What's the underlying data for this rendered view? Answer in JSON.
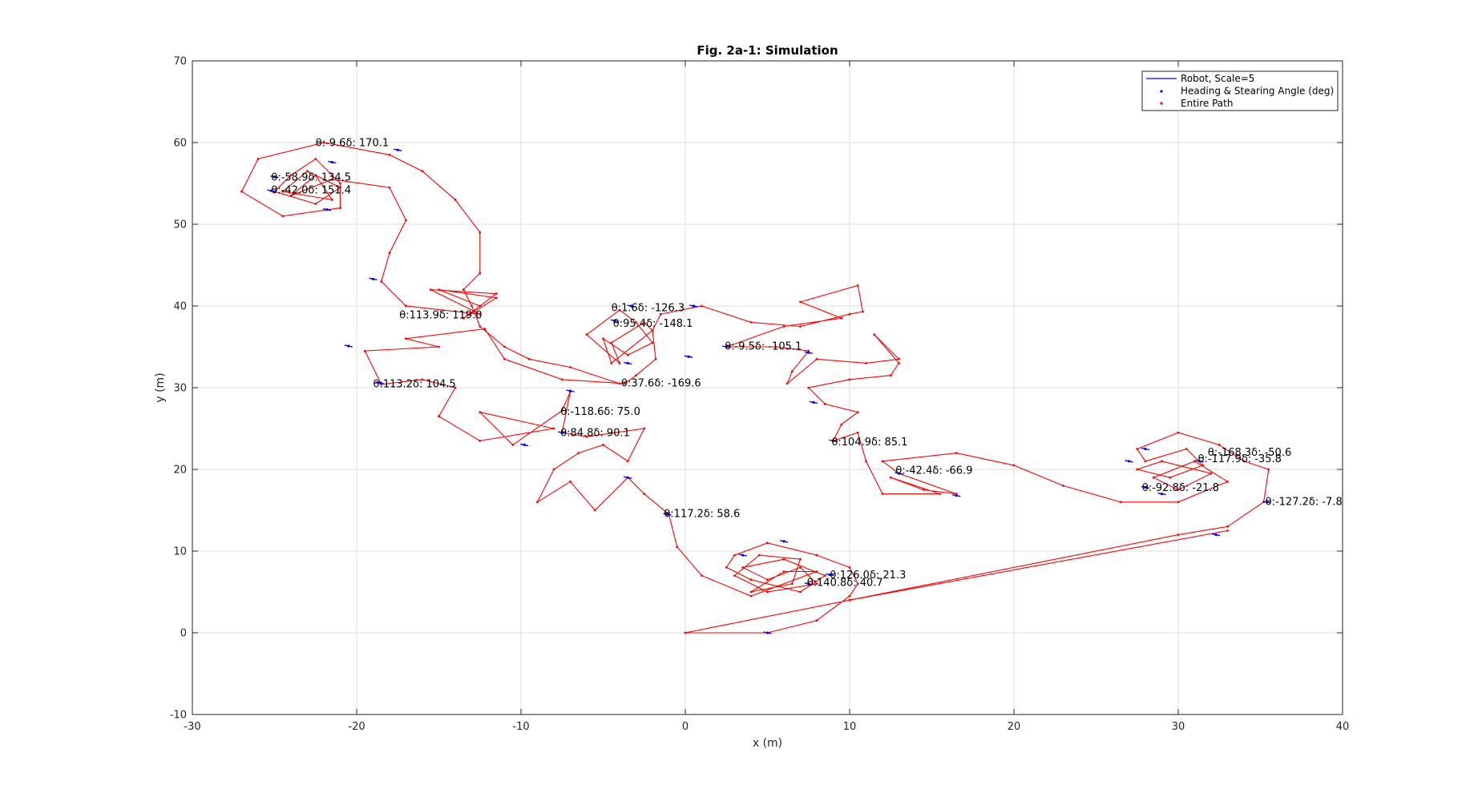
{
  "chart_data": {
    "type": "line",
    "title": "Fig. 2a-1: Simulation",
    "xlabel": "x (m)",
    "ylabel": "y (m)",
    "xlim": [
      -30,
      40
    ],
    "ylim": [
      -10,
      70
    ],
    "xticks": [
      -30,
      -20,
      -10,
      0,
      10,
      20,
      30,
      40
    ],
    "yticks": [
      -10,
      0,
      10,
      20,
      30,
      40,
      50,
      60,
      70
    ],
    "grid": true,
    "legend_position": "top-right",
    "colors": {
      "robot": "#0000ff",
      "heading": "#0000ff",
      "path": "#ff0000"
    },
    "series": [
      {
        "name": "Robot, Scale=5",
        "style": "line",
        "color": "#0000ff"
      },
      {
        "name": "Heading & Stearing Angle (deg)",
        "style": "marker",
        "color": "#0000ff"
      },
      {
        "name": "Entire Path",
        "style": "marker",
        "color": "#ff0000",
        "points": [
          [
            0,
            0
          ],
          [
            5,
            0
          ],
          [
            8,
            1.5
          ],
          [
            10,
            4.5
          ],
          [
            10.5,
            6
          ],
          [
            10,
            8
          ],
          [
            8,
            9.5
          ],
          [
            5,
            11
          ],
          [
            3,
            9.5
          ],
          [
            2.5,
            8
          ],
          [
            4,
            6.5
          ],
          [
            7,
            5
          ],
          [
            8.5,
            7
          ],
          [
            6,
            9
          ],
          [
            3.5,
            8
          ],
          [
            5,
            6.5
          ],
          [
            7,
            8
          ],
          [
            8,
            6
          ],
          [
            5,
            5
          ],
          [
            3,
            7
          ],
          [
            4.5,
            9.5
          ],
          [
            7,
            9
          ],
          [
            6.5,
            6
          ],
          [
            4,
            5
          ],
          [
            6,
            7.5
          ],
          [
            8,
            7.5
          ],
          [
            4,
            4.5
          ],
          [
            1,
            7
          ],
          [
            -0.5,
            10.5
          ],
          [
            -1,
            14.5
          ],
          [
            -2.5,
            17
          ],
          [
            -3.5,
            19
          ],
          [
            -5.5,
            15
          ],
          [
            -7,
            18.5
          ],
          [
            -9,
            16
          ],
          [
            -8,
            20
          ],
          [
            -6.5,
            22
          ],
          [
            -5,
            23
          ],
          [
            -3.5,
            21
          ],
          [
            -2.5,
            25
          ],
          [
            -6,
            24
          ],
          [
            -7.5,
            24.5
          ],
          [
            -7,
            29.5
          ],
          [
            -7.5,
            27.2
          ],
          [
            -10.5,
            23
          ],
          [
            -12.5,
            27
          ],
          [
            -8,
            25
          ],
          [
            -12.5,
            23.5
          ],
          [
            -15,
            26.5
          ],
          [
            -14,
            30
          ],
          [
            -16,
            31
          ],
          [
            -18.5,
            30.4
          ],
          [
            -19.5,
            34.5
          ],
          [
            -15,
            35
          ],
          [
            -17,
            36
          ],
          [
            -12.2,
            37.2
          ],
          [
            -11,
            33.5
          ],
          [
            -7.5,
            31
          ],
          [
            -3.7,
            30.5
          ],
          [
            -3,
            31.5
          ],
          [
            -1.8,
            33.5
          ],
          [
            -2,
            37
          ],
          [
            -2.5,
            38
          ],
          [
            -4.5,
            35.5
          ],
          [
            -4,
            33
          ],
          [
            -6,
            36.5
          ],
          [
            -4,
            39.5
          ],
          [
            -3,
            38
          ],
          [
            -2,
            35.5
          ],
          [
            -3.5,
            34
          ],
          [
            -5,
            36
          ],
          [
            -4.5,
            33
          ],
          [
            -2,
            37
          ],
          [
            -1.5,
            39
          ],
          [
            1,
            40
          ],
          [
            4,
            38
          ],
          [
            7,
            37.5
          ],
          [
            10,
            39
          ],
          [
            10.8,
            39.3
          ],
          [
            10.5,
            42.5
          ],
          [
            7,
            40.5
          ],
          [
            9.5,
            38.5
          ],
          [
            6,
            37.5
          ],
          [
            2.5,
            35
          ],
          [
            5.5,
            35
          ],
          [
            7.5,
            34.5
          ],
          [
            6.5,
            32
          ],
          [
            6.2,
            30.5
          ],
          [
            8,
            33.5
          ],
          [
            11,
            33
          ],
          [
            13,
            33.5
          ],
          [
            11.5,
            36.5
          ],
          [
            13,
            33
          ],
          [
            12.5,
            31.5
          ],
          [
            10,
            31
          ],
          [
            7.5,
            30
          ],
          [
            8.5,
            28
          ],
          [
            10.5,
            27
          ],
          [
            9.5,
            25.5
          ],
          [
            9,
            23.5
          ],
          [
            10.5,
            24.5
          ],
          [
            11,
            21
          ],
          [
            12,
            17
          ],
          [
            15.5,
            17
          ],
          [
            12.5,
            19
          ],
          [
            14.5,
            17.5
          ],
          [
            16.5,
            17
          ],
          [
            13,
            19.5
          ],
          [
            12,
            21
          ],
          [
            16.5,
            22
          ],
          [
            20,
            20.5
          ],
          [
            23,
            18
          ],
          [
            26.5,
            16
          ],
          [
            30,
            16
          ],
          [
            33,
            18.5
          ],
          [
            31,
            21
          ],
          [
            28.5,
            19
          ],
          [
            30,
            17.5
          ],
          [
            32,
            19.5
          ],
          [
            29,
            21
          ],
          [
            27.5,
            20
          ],
          [
            29.5,
            19
          ],
          [
            31.5,
            20.5
          ],
          [
            30.5,
            22.5
          ],
          [
            28,
            21
          ],
          [
            27.5,
            22.5
          ],
          [
            30,
            24.5
          ],
          [
            32.5,
            23
          ],
          [
            34,
            21
          ],
          [
            35.5,
            20
          ],
          [
            35.2,
            16
          ],
          [
            33,
            13
          ],
          [
            30,
            12
          ],
          [
            10,
            4
          ],
          [
            0,
            0
          ]
        ]
      }
    ],
    "path_segments": [
      [
        [
          10,
          4
        ],
        [
          33,
          12.5
        ]
      ],
      [
        [
          -4,
          30.5
        ],
        [
          -7,
          32.5
        ],
        [
          -9.5,
          33.5
        ],
        [
          -11,
          35
        ],
        [
          -12.5,
          37.5
        ],
        [
          -13,
          40
        ],
        [
          -13.5,
          42
        ]
      ],
      [
        [
          -13.5,
          42
        ],
        [
          -12.5,
          44
        ],
        [
          -12.5,
          49
        ],
        [
          -14,
          53
        ],
        [
          -16,
          56.5
        ],
        [
          -18,
          58.5
        ],
        [
          -22,
          60
        ],
        [
          -26,
          58
        ],
        [
          -27,
          54
        ],
        [
          -24.5,
          51
        ],
        [
          -21,
          52
        ],
        [
          -21,
          55
        ],
        [
          -22.5,
          58
        ],
        [
          -24,
          56
        ],
        [
          -25,
          54
        ],
        [
          -22.5,
          52.5
        ],
        [
          -21,
          54.5
        ],
        [
          -23,
          56.5
        ],
        [
          -24.5,
          54
        ],
        [
          -21.5,
          53
        ],
        [
          -22.5,
          56
        ],
        [
          -24,
          53.5
        ],
        [
          -21.5,
          55.5
        ]
      ],
      [
        [
          -21.5,
          55.5
        ],
        [
          -18,
          54.5
        ],
        [
          -17,
          50.5
        ],
        [
          -18,
          46.5
        ],
        [
          -18.5,
          43
        ],
        [
          -17,
          40
        ]
      ],
      [
        [
          -17,
          40
        ],
        [
          -12.5,
          39
        ],
        [
          -15.5,
          42
        ],
        [
          -11.5,
          41.5
        ],
        [
          -13.5,
          38.5
        ],
        [
          -11.5,
          41
        ],
        [
          -15,
          42
        ],
        [
          -12.5,
          40
        ]
      ]
    ],
    "robot_markers": [
      [
        -17.5,
        59.1
      ],
      [
        -21.5,
        57.6
      ],
      [
        -25,
        55.8
      ],
      [
        -25.2,
        54.1
      ],
      [
        -21.8,
        51.8
      ],
      [
        -19,
        43.3
      ],
      [
        -20.5,
        35.1
      ],
      [
        -18.6,
        30.6
      ],
      [
        -9.8,
        23
      ],
      [
        -7,
        29.6
      ],
      [
        -7.5,
        24.5
      ],
      [
        -3.5,
        19
      ],
      [
        -1.1,
        14.5
      ],
      [
        -3.3,
        40
      ],
      [
        -4.3,
        38.2
      ],
      [
        -3.5,
        33
      ],
      [
        0.5,
        40
      ],
      [
        0.2,
        33.8
      ],
      [
        2.5,
        35
      ],
      [
        7.5,
        34.3
      ],
      [
        7.8,
        28.2
      ],
      [
        9,
        23.5
      ],
      [
        13,
        19.5
      ],
      [
        16.5,
        16.8
      ],
      [
        5,
        0
      ],
      [
        3.5,
        9.5
      ],
      [
        6,
        11.2
      ],
      [
        7.5,
        6
      ],
      [
        8.8,
        7.1
      ],
      [
        28,
        22.5
      ],
      [
        27,
        21
      ],
      [
        28,
        17.8
      ],
      [
        29,
        17
      ],
      [
        31.3,
        21
      ],
      [
        35.4,
        16
      ],
      [
        32.3,
        12
      ]
    ],
    "annotations": [
      {
        "x": -22.5,
        "y": 60,
        "text": "θ:-9.6δ: 170.1"
      },
      {
        "x": -25.2,
        "y": 55.8,
        "text": "θ:-58.9δ: 134.5"
      },
      {
        "x": -25.2,
        "y": 54.2,
        "text": "θ:-42.0δ: 151.4"
      },
      {
        "x": -17.4,
        "y": 38.9,
        "text": "θ:113.9δ: 119.0"
      },
      {
        "x": -19.0,
        "y": 30.5,
        "text": "θ:113.2δ: 104.5"
      },
      {
        "x": -4.5,
        "y": 39.8,
        "text": "θ:1.6δ: -126.3"
      },
      {
        "x": -4.4,
        "y": 37.9,
        "text": "θ:95.4δ: -148.1"
      },
      {
        "x": -3.9,
        "y": 30.6,
        "text": "θ:37.6δ: -169.6"
      },
      {
        "x": 2.4,
        "y": 35.1,
        "text": "θ:-9.5δ: -105.1"
      },
      {
        "x": -7.6,
        "y": 27.1,
        "text": "θ:-118.6δ: 75.0"
      },
      {
        "x": -7.6,
        "y": 24.5,
        "text": "θ:84.8δ: 90.1"
      },
      {
        "x": 8.9,
        "y": 23.4,
        "text": "θ:104.9δ: 85.1"
      },
      {
        "x": 12.8,
        "y": 19.9,
        "text": "θ:-42.4δ: -66.9"
      },
      {
        "x": -1.3,
        "y": 14.6,
        "text": "θ:117.2δ: 58.6"
      },
      {
        "x": 8.8,
        "y": 7.1,
        "text": "θ:126.0δ: 21.3"
      },
      {
        "x": 7.4,
        "y": 6.2,
        "text": "θ:140.8δ: 40.7"
      },
      {
        "x": 31.8,
        "y": 22.1,
        "text": "θ:-168.3δ: -50.6"
      },
      {
        "x": 31.2,
        "y": 21.3,
        "text": "θ:-117.9δ: -35.8"
      },
      {
        "x": 27.8,
        "y": 17.8,
        "text": "θ:-92.8δ: -21.8"
      },
      {
        "x": 35.3,
        "y": 16.1,
        "text": "θ:-127.2δ: -7.8"
      }
    ]
  }
}
